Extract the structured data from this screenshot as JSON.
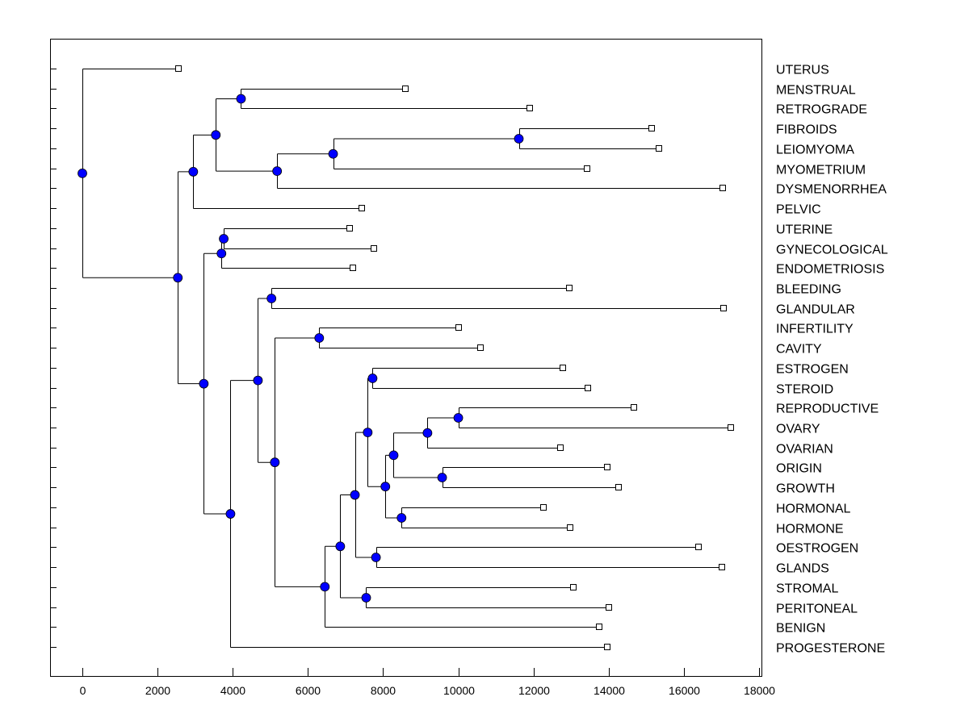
{
  "chart_data": {
    "type": "dendrogram",
    "title": "",
    "xlabel": "",
    "ylabel": "",
    "xlim": [
      -850,
      18000
    ],
    "xticks": [
      0,
      2000,
      4000,
      6000,
      8000,
      10000,
      12000,
      14000,
      16000,
      18000
    ],
    "xtick_labels": [
      "0",
      "2000",
      "4000",
      "6000",
      "8000",
      "10000",
      "12000",
      "14000",
      "16000",
      "18000"
    ],
    "colors": {
      "node": "#0000ff",
      "leaf": "#ffffff",
      "line": "#000000"
    },
    "leaves": [
      {
        "name": "UTERUS",
        "x": 2560
      },
      {
        "name": "MENSTRUAL",
        "x": 8600
      },
      {
        "name": "RETROGRADE",
        "x": 11890
      },
      {
        "name": "FIBROIDS",
        "x": 15140
      },
      {
        "name": "LEIOMYOMA",
        "x": 15330
      },
      {
        "name": "MYOMETRIUM",
        "x": 13420
      },
      {
        "name": "DYSMENORRHEA",
        "x": 17030
      },
      {
        "name": "PELVIC",
        "x": 7440
      },
      {
        "name": "UTERINE",
        "x": 7120
      },
      {
        "name": "GYNECOLOGICAL",
        "x": 7760
      },
      {
        "name": "ENDOMETRIOSIS",
        "x": 7200
      },
      {
        "name": "BLEEDING",
        "x": 12950
      },
      {
        "name": "GLANDULAR",
        "x": 17050
      },
      {
        "name": "INFERTILITY",
        "x": 10000
      },
      {
        "name": "CAVITY",
        "x": 10600
      },
      {
        "name": "ESTROGEN",
        "x": 12770
      },
      {
        "name": "STEROID",
        "x": 13440
      },
      {
        "name": "REPRODUCTIVE",
        "x": 14670
      },
      {
        "name": "OVARY",
        "x": 17250
      },
      {
        "name": "OVARIAN",
        "x": 12710
      },
      {
        "name": "ORIGIN",
        "x": 13960
      },
      {
        "name": "GROWTH",
        "x": 14260
      },
      {
        "name": "HORMONAL",
        "x": 12260
      },
      {
        "name": "HORMONE",
        "x": 12970
      },
      {
        "name": "OESTROGEN",
        "x": 16390
      },
      {
        "name": "GLANDS",
        "x": 17010
      },
      {
        "name": "STROMAL",
        "x": 13050
      },
      {
        "name": "PERITONEAL",
        "x": 14000
      },
      {
        "name": "BENIGN",
        "x": 13740
      },
      {
        "name": "PROGESTERONE",
        "x": 13960
      }
    ],
    "merges": [
      {
        "id": "G",
        "x": 11610,
        "children": [
          "FIBROIDS",
          "LEIOMYOMA"
        ]
      },
      {
        "id": "F",
        "x": 6670,
        "children": [
          "G",
          "MYOMETRIUM"
        ]
      },
      {
        "id": "E",
        "x": 5180,
        "children": [
          "F",
          "DYSMENORRHEA"
        ]
      },
      {
        "id": "D",
        "x": 4220,
        "children": [
          "MENSTRUAL",
          "RETROGRADE"
        ]
      },
      {
        "id": "C",
        "x": 3550,
        "children": [
          "D",
          "E"
        ]
      },
      {
        "id": "B",
        "x": 2950,
        "children": [
          "C",
          "PELVIC"
        ]
      },
      {
        "id": "J",
        "x": 3760,
        "children": [
          "UTERINE",
          "GYNECOLOGICAL"
        ]
      },
      {
        "id": "I",
        "x": 3700,
        "children": [
          "J",
          "ENDOMETRIOSIS"
        ]
      },
      {
        "id": "M",
        "x": 5030,
        "children": [
          "BLEEDING",
          "GLANDULAR"
        ]
      },
      {
        "id": "O",
        "x": 6300,
        "children": [
          "INFERTILITY",
          "CAVITY"
        ]
      },
      {
        "id": "T",
        "x": 7720,
        "children": [
          "ESTROGEN",
          "STEROID"
        ]
      },
      {
        "id": "X",
        "x": 10000,
        "children": [
          "REPRODUCTIVE",
          "OVARY"
        ]
      },
      {
        "id": "W",
        "x": 9180,
        "children": [
          "X",
          "OVARIAN"
        ]
      },
      {
        "id": "Y",
        "x": 9570,
        "children": [
          "ORIGIN",
          "GROWTH"
        ]
      },
      {
        "id": "V",
        "x": 8280,
        "children": [
          "W",
          "Y"
        ]
      },
      {
        "id": "Z",
        "x": 8490,
        "children": [
          "HORMONAL",
          "HORMONE"
        ]
      },
      {
        "id": "U",
        "x": 8060,
        "children": [
          "V",
          "Z"
        ]
      },
      {
        "id": "S",
        "x": 7590,
        "children": [
          "T",
          "U"
        ]
      },
      {
        "id": "AA",
        "x": 7810,
        "children": [
          "OESTROGEN",
          "GLANDS"
        ]
      },
      {
        "id": "R",
        "x": 7250,
        "children": [
          "S",
          "AA"
        ]
      },
      {
        "id": "AB",
        "x": 7550,
        "children": [
          "STROMAL",
          "PERITONEAL"
        ]
      },
      {
        "id": "Q",
        "x": 6860,
        "children": [
          "R",
          "AB"
        ]
      },
      {
        "id": "P",
        "x": 6450,
        "children": [
          "Q",
          "BENIGN"
        ]
      },
      {
        "id": "N",
        "x": 5120,
        "children": [
          "O",
          "P"
        ]
      },
      {
        "id": "L",
        "x": 4670,
        "children": [
          "M",
          "N"
        ]
      },
      {
        "id": "K",
        "x": 3940,
        "children": [
          "L",
          "PROGESTERONE"
        ]
      },
      {
        "id": "H",
        "x": 3230,
        "children": [
          "I",
          "K"
        ]
      },
      {
        "id": "A",
        "x": 2540,
        "children": [
          "B",
          "H"
        ]
      },
      {
        "id": "ROOT",
        "x": 0,
        "children": [
          "UTERUS",
          "A"
        ]
      }
    ]
  }
}
